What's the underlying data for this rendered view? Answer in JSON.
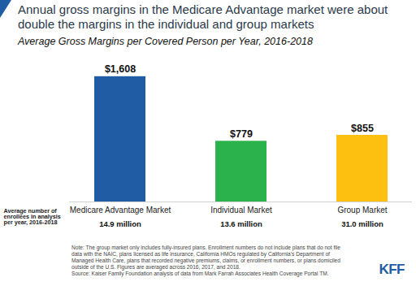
{
  "chart_data": {
    "type": "bar",
    "title": "Annual gross margins in the Medicare Advantage market were about double the margins in the individual and group markets",
    "subtitle": "Average Gross Margins per Covered Person per Year, 2016-2018",
    "categories": [
      "Medicare Advantage Market",
      "Individual Market",
      "Group Market"
    ],
    "values": [
      1608,
      779,
      855
    ],
    "value_labels": [
      "$1,608",
      "$779",
      "$855"
    ],
    "colors": [
      "#1f5ca3",
      "#2bb24c",
      "#fdc010"
    ],
    "ylim": [
      0,
      1700
    ],
    "grid": false,
    "data_labels": true,
    "tick_labels": "x",
    "enrollees_label": "Average number of enrollees in analysis per year, 2016-2018",
    "enrollees": [
      "14.9 million",
      "13.6 million",
      "31.0 million"
    ],
    "note": "Note: The group market only includes fully-insured plans. Enrollment numbers do not include plans that do not file data with the NAIC, plans licensed as life insurance, California HMOs regulated by California's Department of Managed Health Care, plans that recorded negative premiums, claims, or enrollment numbers, or plans domiciled outside of the U.S. Figures are averaged across 2016, 2017, and 2018.",
    "source": "Source: Kaiser Family Foundation analysis of data from Mark Farrah Associates Health Coverage Portal TM.",
    "logo": "KFF"
  }
}
